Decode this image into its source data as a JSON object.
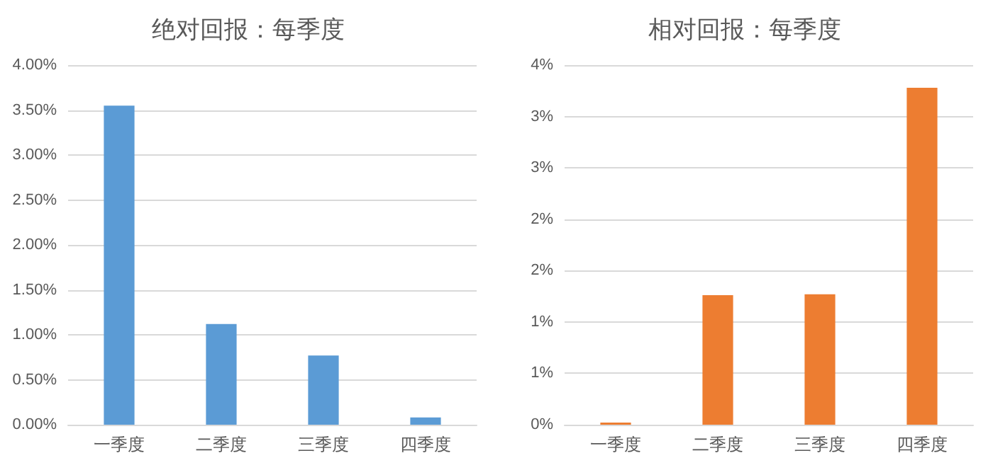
{
  "chart_data": [
    {
      "type": "bar",
      "title": "绝对回报：每季度",
      "categories": [
        "一季度",
        "二季度",
        "三季度",
        "四季度"
      ],
      "values": [
        3.55,
        1.12,
        0.77,
        0.08
      ],
      "color": "#5b9bd5",
      "ylim": [
        0,
        4
      ],
      "yticks": [
        {
          "value": 0,
          "label": "0.00%"
        },
        {
          "value": 0.5,
          "label": "0.50%"
        },
        {
          "value": 1,
          "label": "1.00%"
        },
        {
          "value": 1.5,
          "label": "1.50%"
        },
        {
          "value": 2,
          "label": "2.00%"
        },
        {
          "value": 2.5,
          "label": "2.50%"
        },
        {
          "value": 3,
          "label": "3.00%"
        },
        {
          "value": 3.5,
          "label": "3.50%"
        },
        {
          "value": 4,
          "label": "4.00%"
        }
      ],
      "grid": "y"
    },
    {
      "type": "bar",
      "title": "相对回报：每季度",
      "categories": [
        "一季度",
        "二季度",
        "三季度",
        "四季度"
      ],
      "values": [
        0.02,
        1.26,
        1.27,
        3.28
      ],
      "color": "#ed7d31",
      "ylim": [
        0,
        3.5
      ],
      "yticks": [
        {
          "value": 0,
          "label": "0%"
        },
        {
          "value": 0.5,
          "label": "1%"
        },
        {
          "value": 1,
          "label": "1%"
        },
        {
          "value": 1.5,
          "label": "2%"
        },
        {
          "value": 2,
          "label": "2%"
        },
        {
          "value": 2.5,
          "label": "3%"
        },
        {
          "value": 3,
          "label": "3%"
        },
        {
          "value": 3.5,
          "label": "4%"
        }
      ],
      "grid": "y"
    }
  ]
}
